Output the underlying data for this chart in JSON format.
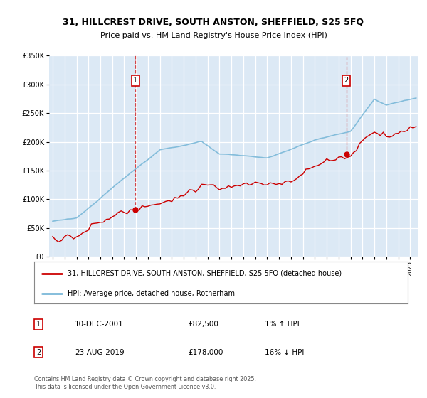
{
  "title_line1": "31, HILLCREST DRIVE, SOUTH ANSTON, SHEFFIELD, S25 5FQ",
  "title_line2": "Price paid vs. HM Land Registry's House Price Index (HPI)",
  "legend_label_property": "31, HILLCREST DRIVE, SOUTH ANSTON, SHEFFIELD, S25 5FQ (detached house)",
  "legend_label_hpi": "HPI: Average price, detached house, Rotherham",
  "annotation1_date": "10-DEC-2001",
  "annotation1_price": "£82,500",
  "annotation1_hpi": "1% ↑ HPI",
  "annotation2_date": "23-AUG-2019",
  "annotation2_price": "£178,000",
  "annotation2_hpi": "16% ↓ HPI",
  "footer": "Contains HM Land Registry data © Crown copyright and database right 2025.\nThis data is licensed under the Open Government Licence v3.0.",
  "sale1_year": 2001.94,
  "sale1_price": 82500,
  "sale2_year": 2019.64,
  "sale2_price": 178000,
  "plot_bg_color": "#dce9f5",
  "grid_color": "#ffffff",
  "hpi_color": "#7ab8d8",
  "property_color": "#cc0000",
  "dashed_line_color": "#cc0000",
  "ylim": [
    0,
    350000
  ],
  "xlim_start": 1994.7,
  "xlim_end": 2025.7
}
